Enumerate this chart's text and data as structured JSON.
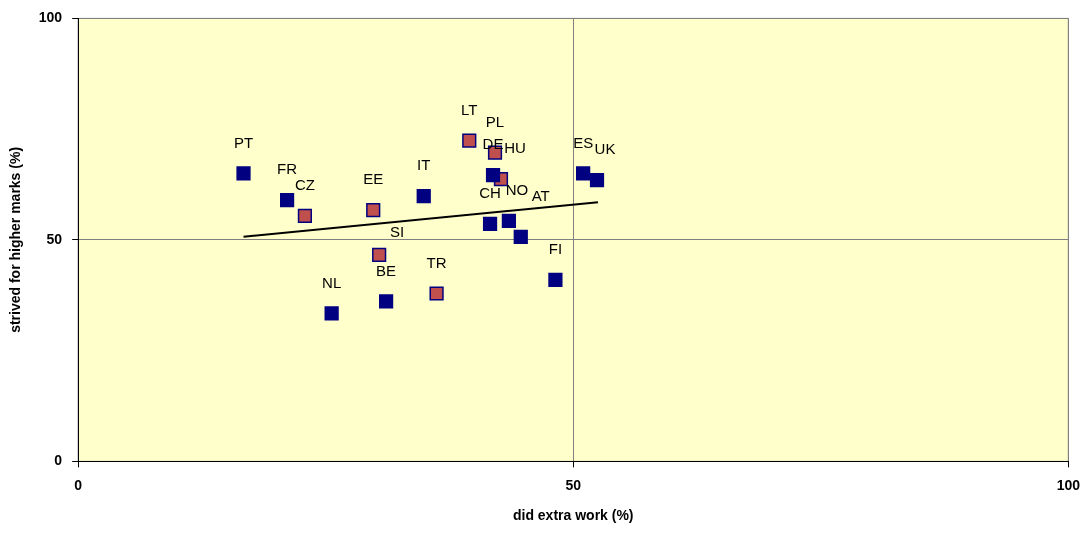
{
  "chart_data": {
    "type": "scatter",
    "xlabel": "did extra work (%)",
    "ylabel": "strived for higher marks (%)",
    "xlim": [
      0,
      100
    ],
    "ylim": [
      0,
      100
    ],
    "xticks": [
      0,
      50,
      100
    ],
    "yticks": [
      0,
      50,
      100
    ],
    "grid": true,
    "legend": false,
    "marker": "square",
    "series": [
      {
        "color": "#000080",
        "x": [
          16.7,
          21.1,
          34.9,
          25.6,
          31.1,
          41.9,
          41.6,
          43.5,
          44.7,
          51.0,
          52.4,
          48.2
        ],
        "values": [
          65.0,
          59.0,
          59.9,
          33.4,
          36.1,
          64.6,
          53.6,
          54.3,
          50.7,
          65.0,
          63.5,
          41.0
        ]
      },
      {
        "color": "#c0504d",
        "x": [
          22.9,
          29.8,
          30.4,
          36.2,
          39.5,
          42.1,
          42.7
        ],
        "values": [
          55.4,
          56.7,
          46.6,
          37.9,
          72.4,
          69.7,
          63.7
        ]
      },
      {
        "type": "line",
        "color": "#000000",
        "marker": "none",
        "x": [
          16.7,
          52.5
        ],
        "values": [
          50.7,
          58.5
        ]
      }
    ],
    "annotations": [
      {
        "text": "PT",
        "x": 16.7,
        "y": 65.0
      },
      {
        "text": "FR",
        "x": 21.1,
        "y": 59.0
      },
      {
        "text": "IT",
        "x": 34.9,
        "y": 59.9
      },
      {
        "text": "NL",
        "x": 25.6,
        "y": 33.4
      },
      {
        "text": "BE",
        "x": 31.1,
        "y": 36.1
      },
      {
        "text": "DE",
        "x": 41.9,
        "y": 64.6
      },
      {
        "text": "CH",
        "x": 41.6,
        "y": 53.6
      },
      {
        "text": "NO",
        "x": 43.5,
        "y": 54.3
      },
      {
        "text": "AT",
        "x": 44.7,
        "y": 50.7
      },
      {
        "text": "ES",
        "x": 51.0,
        "y": 65.0
      },
      {
        "text": "UK",
        "x": 52.4,
        "y": 63.5
      },
      {
        "text": "FI",
        "x": 48.2,
        "y": 41.0
      },
      {
        "text": "CZ",
        "x": 22.9,
        "y": 55.4
      },
      {
        "text": "EE",
        "x": 29.8,
        "y": 56.7
      },
      {
        "text": "SI",
        "x": 30.4,
        "y": 46.6
      },
      {
        "text": "TR",
        "x": 36.2,
        "y": 37.9
      },
      {
        "text": "LT",
        "x": 39.5,
        "y": 72.4
      },
      {
        "text": "PL",
        "x": 42.1,
        "y": 69.7
      },
      {
        "text": "HU",
        "x": 42.7,
        "y": 63.7
      }
    ]
  }
}
